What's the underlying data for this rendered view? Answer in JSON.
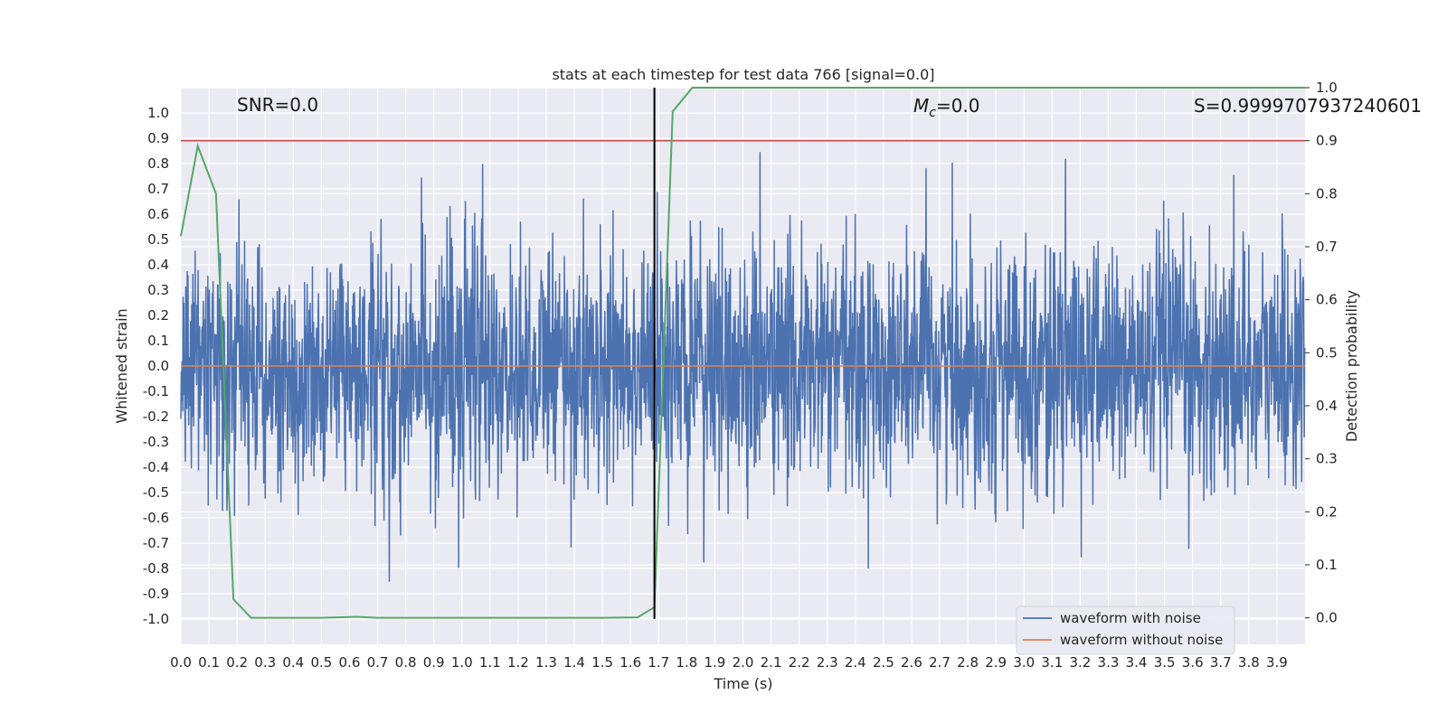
{
  "chart_data": {
    "type": "line",
    "title": "stats at each timestep for test data 766 [signal=0.0]",
    "xlabel": "Time (s)",
    "ylabel": "Whitened strain",
    "y2label": "Detection probability",
    "xlim": [
      0.0,
      4.0
    ],
    "ylim": [
      -1.1,
      1.1
    ],
    "y2lim": [
      -0.05,
      1.0
    ],
    "x_ticks": [
      "0.0",
      "0.1",
      "0.2",
      "0.3",
      "0.4",
      "0.5",
      "0.6",
      "0.7",
      "0.8",
      "0.9",
      "1.0",
      "1.1",
      "1.2",
      "1.3",
      "1.4",
      "1.5",
      "1.6",
      "1.7",
      "1.8",
      "1.9",
      "2.0",
      "2.1",
      "2.2",
      "2.3",
      "2.4",
      "2.5",
      "2.6",
      "2.7",
      "2.8",
      "2.9",
      "3.0",
      "3.1",
      "3.2",
      "3.3",
      "3.4",
      "3.5",
      "3.6",
      "3.7",
      "3.8",
      "3.9"
    ],
    "y_ticks": [
      "1.0",
      "0.9",
      "0.8",
      "0.7",
      "0.6",
      "0.5",
      "0.4",
      "0.3",
      "0.2",
      "0.1",
      "0.0",
      "-0.1",
      "-0.2",
      "-0.3",
      "-0.4",
      "-0.5",
      "-0.6",
      "-0.7",
      "-0.8",
      "-0.9",
      "-1.0"
    ],
    "y2_ticks": [
      "1.0",
      "0.9",
      "0.8",
      "0.7",
      "0.6",
      "0.5",
      "0.4",
      "0.3",
      "0.2",
      "0.1",
      "0.0"
    ],
    "annotations": {
      "snr": "SNR=0.0",
      "mc_symbol": "M",
      "mc_sub": "c",
      "mc_value": "=0.0",
      "s": "S=0.9999707937240601"
    },
    "threshold_y2": 0.9,
    "marker_time": 1.685,
    "grid": true,
    "legend_position": "lower-right",
    "series": [
      {
        "name": "waveform with noise",
        "color": "#4c72b0",
        "noise_amplitude": 0.24
      },
      {
        "name": "waveform without noise",
        "color": "#dd8452",
        "value": 0.0
      }
    ],
    "detection_probability": {
      "color": "#55a868",
      "x": [
        0.0,
        0.06,
        0.125,
        0.187,
        0.25,
        0.5,
        0.625,
        0.7,
        1.0,
        1.25,
        1.5,
        1.625,
        1.685,
        1.75,
        1.82,
        2.0,
        2.5,
        3.0,
        3.5,
        4.0
      ],
      "y": [
        0.72,
        0.89,
        0.8,
        0.035,
        0.0,
        0.0,
        0.002,
        0.0,
        0.0,
        0.0,
        0.0,
        0.001,
        0.02,
        0.955,
        1.0,
        1.0,
        1.0,
        1.0,
        1.0,
        1.0
      ]
    },
    "threshold_color": "#c44e52",
    "marker_color": "#000000"
  }
}
